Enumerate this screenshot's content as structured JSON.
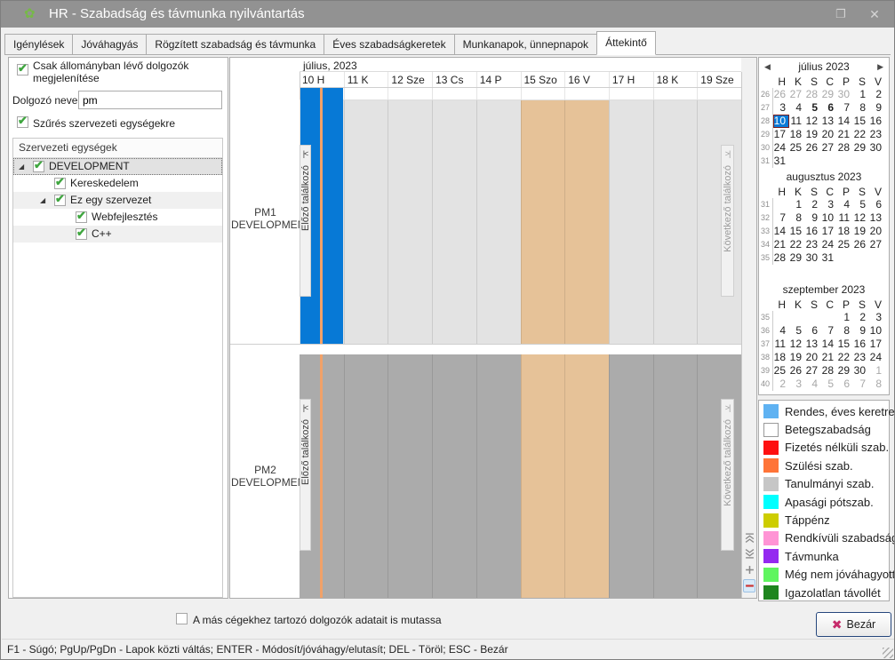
{
  "glyphs": {
    "check": "✔",
    "app_icon": "✿",
    "maximize": "❐",
    "close": "✕",
    "expander_open": "◢",
    "prev_meeting": "|<",
    "next_meeting": ">|",
    "cal_prev": "◀",
    "cal_next": "▶",
    "close_x": "✖"
  },
  "window": {
    "title": "HR - Szabadság és távmunka nyilvántartás"
  },
  "tabs": [
    {
      "label": "Igénylések",
      "active": false
    },
    {
      "label": "Jóváhagyás",
      "active": false
    },
    {
      "label": "Rögzített szabadság és távmunka",
      "active": false
    },
    {
      "label": "Éves szabadságkeretek",
      "active": false
    },
    {
      "label": "Munkanapok, ünnepnapok",
      "active": false
    },
    {
      "label": "Áttekintő",
      "active": true
    }
  ],
  "filters": {
    "only_active_label": "Csak állományban lévő dolgozók megjelenítése",
    "only_active_checked": true,
    "employee_name_label": "Dolgozó neve:",
    "employee_name_value": "pm",
    "filter_org_label": "Szűrés szervezeti egységekre",
    "filter_org_checked": true,
    "tree_header": "Szervezeti egységek",
    "tree": [
      {
        "label": "DEVELOPMENT",
        "level": 0,
        "expanded": true,
        "checked": true,
        "selected": true
      },
      {
        "label": "Kereskedelem",
        "level": 1,
        "checked": true
      },
      {
        "label": "Ez egy szervezet",
        "level": 1,
        "expanded": true,
        "checked": true
      },
      {
        "label": "Webfejlesztés",
        "level": 2,
        "checked": true
      },
      {
        "label": "C++",
        "level": 2,
        "checked": true
      }
    ]
  },
  "gantt": {
    "month_label": "július, 2023",
    "day_headers": [
      "10 H",
      "11 K",
      "12 Sze",
      "13 Cs",
      "14 P",
      "15 Szo",
      "16 V",
      "17 H",
      "18 K",
      "19 Sze"
    ],
    "weekend_indexes": [
      5,
      6
    ],
    "today_index": 0,
    "prev_button_label": "Előző találkozó",
    "next_button_label": "Következő találkozó",
    "rows": [
      {
        "line1": "PM1",
        "line2": "DEVELOPMENT",
        "shade": "light",
        "events": [
          {
            "day": 0,
            "type": "Rendes, éves keretre",
            "color": "#0779D6"
          }
        ]
      },
      {
        "line1": "PM2",
        "line2": "DEVELOPMENT",
        "shade": "dark",
        "events": []
      }
    ],
    "colors": {
      "event_blue": "#0779D6",
      "today_line": "#F2A168",
      "weekend": "#E6C298",
      "row_light": "#E3E3E3",
      "row_dark": "#ABABAB"
    }
  },
  "mini_calendars": [
    {
      "title": "július 2023",
      "nav": true,
      "weekdays": [
        "H",
        "K",
        "S",
        "C",
        "P",
        "S",
        "V"
      ],
      "weeks": [
        {
          "num": "26",
          "days": [
            {
              "d": "26",
              "f": "m"
            },
            {
              "d": "27",
              "f": "m"
            },
            {
              "d": "28",
              "f": "m"
            },
            {
              "d": "29",
              "f": "m"
            },
            {
              "d": "30",
              "f": "m"
            },
            {
              "d": "1"
            },
            {
              "d": "2"
            }
          ]
        },
        {
          "num": "27",
          "days": [
            {
              "d": "3"
            },
            {
              "d": "4"
            },
            {
              "d": "5",
              "f": "b"
            },
            {
              "d": "6",
              "f": "b"
            },
            {
              "d": "7"
            },
            {
              "d": "8"
            },
            {
              "d": "9"
            }
          ]
        },
        {
          "num": "28",
          "days": [
            {
              "d": "10",
              "f": "s"
            },
            {
              "d": "11"
            },
            {
              "d": "12"
            },
            {
              "d": "13"
            },
            {
              "d": "14"
            },
            {
              "d": "15"
            },
            {
              "d": "16"
            }
          ]
        },
        {
          "num": "29",
          "days": [
            {
              "d": "17"
            },
            {
              "d": "18"
            },
            {
              "d": "19"
            },
            {
              "d": "20"
            },
            {
              "d": "21"
            },
            {
              "d": "22"
            },
            {
              "d": "23"
            }
          ]
        },
        {
          "num": "30",
          "days": [
            {
              "d": "24"
            },
            {
              "d": "25"
            },
            {
              "d": "26"
            },
            {
              "d": "27"
            },
            {
              "d": "28"
            },
            {
              "d": "29"
            },
            {
              "d": "30"
            }
          ]
        },
        {
          "num": "31",
          "days": [
            {
              "d": "31"
            },
            null,
            null,
            null,
            null,
            null,
            null
          ]
        }
      ]
    },
    {
      "title": "augusztus 2023",
      "nav": false,
      "weekdays": [
        "H",
        "K",
        "S",
        "C",
        "P",
        "S",
        "V"
      ],
      "weeks": [
        {
          "num": "31",
          "days": [
            null,
            {
              "d": "1"
            },
            {
              "d": "2"
            },
            {
              "d": "3"
            },
            {
              "d": "4"
            },
            {
              "d": "5"
            },
            {
              "d": "6"
            }
          ]
        },
        {
          "num": "32",
          "days": [
            {
              "d": "7"
            },
            {
              "d": "8"
            },
            {
              "d": "9"
            },
            {
              "d": "10"
            },
            {
              "d": "11"
            },
            {
              "d": "12"
            },
            {
              "d": "13"
            }
          ]
        },
        {
          "num": "33",
          "days": [
            {
              "d": "14"
            },
            {
              "d": "15"
            },
            {
              "d": "16"
            },
            {
              "d": "17"
            },
            {
              "d": "18"
            },
            {
              "d": "19"
            },
            {
              "d": "20"
            }
          ]
        },
        {
          "num": "34",
          "days": [
            {
              "d": "21"
            },
            {
              "d": "22"
            },
            {
              "d": "23"
            },
            {
              "d": "24"
            },
            {
              "d": "25"
            },
            {
              "d": "26"
            },
            {
              "d": "27"
            }
          ]
        },
        {
          "num": "35",
          "days": [
            {
              "d": "28"
            },
            {
              "d": "29"
            },
            {
              "d": "30"
            },
            {
              "d": "31"
            },
            null,
            null,
            null
          ]
        }
      ]
    },
    {
      "title": "szeptember 2023",
      "nav": false,
      "weekdays": [
        "H",
        "K",
        "S",
        "C",
        "P",
        "S",
        "V"
      ],
      "weeks": [
        {
          "num": "35",
          "days": [
            null,
            null,
            null,
            null,
            {
              "d": "1"
            },
            {
              "d": "2"
            },
            {
              "d": "3"
            }
          ]
        },
        {
          "num": "36",
          "days": [
            {
              "d": "4"
            },
            {
              "d": "5"
            },
            {
              "d": "6"
            },
            {
              "d": "7"
            },
            {
              "d": "8"
            },
            {
              "d": "9"
            },
            {
              "d": "10"
            }
          ]
        },
        {
          "num": "37",
          "days": [
            {
              "d": "11"
            },
            {
              "d": "12"
            },
            {
              "d": "13"
            },
            {
              "d": "14"
            },
            {
              "d": "15"
            },
            {
              "d": "16"
            },
            {
              "d": "17"
            }
          ]
        },
        {
          "num": "38",
          "days": [
            {
              "d": "18"
            },
            {
              "d": "19"
            },
            {
              "d": "20"
            },
            {
              "d": "21"
            },
            {
              "d": "22"
            },
            {
              "d": "23"
            },
            {
              "d": "24"
            }
          ]
        },
        {
          "num": "39",
          "days": [
            {
              "d": "25"
            },
            {
              "d": "26"
            },
            {
              "d": "27"
            },
            {
              "d": "28"
            },
            {
              "d": "29"
            },
            {
              "d": "30"
            },
            {
              "d": "1",
              "f": "m"
            }
          ]
        },
        {
          "num": "40",
          "days": [
            {
              "d": "2",
              "f": "m"
            },
            {
              "d": "3",
              "f": "m"
            },
            {
              "d": "4",
              "f": "m"
            },
            {
              "d": "5",
              "f": "m"
            },
            {
              "d": "6",
              "f": "m"
            },
            {
              "d": "7",
              "f": "m"
            },
            {
              "d": "8",
              "f": "m"
            }
          ]
        }
      ]
    }
  ],
  "legend": {
    "items": [
      {
        "label": "Rendes, éves keretre",
        "color": "#5FB2F2"
      },
      {
        "label": "Betegszabadság",
        "color": "#FFFFFF",
        "border": "#9A9A9A"
      },
      {
        "label": "Fizetés nélküli szab.",
        "color": "#FE1010"
      },
      {
        "label": "Szülési szab.",
        "color": "#FF7438"
      },
      {
        "label": "Tanulmányi szab.",
        "color": "#C6C6C6"
      },
      {
        "label": "Apasági pótszab.",
        "color": "#00FFFF"
      },
      {
        "label": "Táppénz",
        "color": "#CDCD01"
      },
      {
        "label": "Rendkívüli szabadság",
        "color": "#FF94D5"
      },
      {
        "label": "Távmunka",
        "color": "#9429F0"
      },
      {
        "label": "Még nem jóváhagyott",
        "color": "#5FF55F"
      },
      {
        "label": "Igazolatlan távollét",
        "color": "#1E851E"
      }
    ]
  },
  "footer": {
    "other_companies_label": "A más cégekhez tartozó dolgozók adatait is mutassa",
    "other_companies_checked": false,
    "close_label": "Bezár"
  },
  "status_bar": {
    "text": "F1 - Súgó; PgUp/PgDn - Lapok közti váltás; ENTER - Módosít/jóváhagy/elutasít; DEL - Töröl; ESC - Bezár"
  }
}
